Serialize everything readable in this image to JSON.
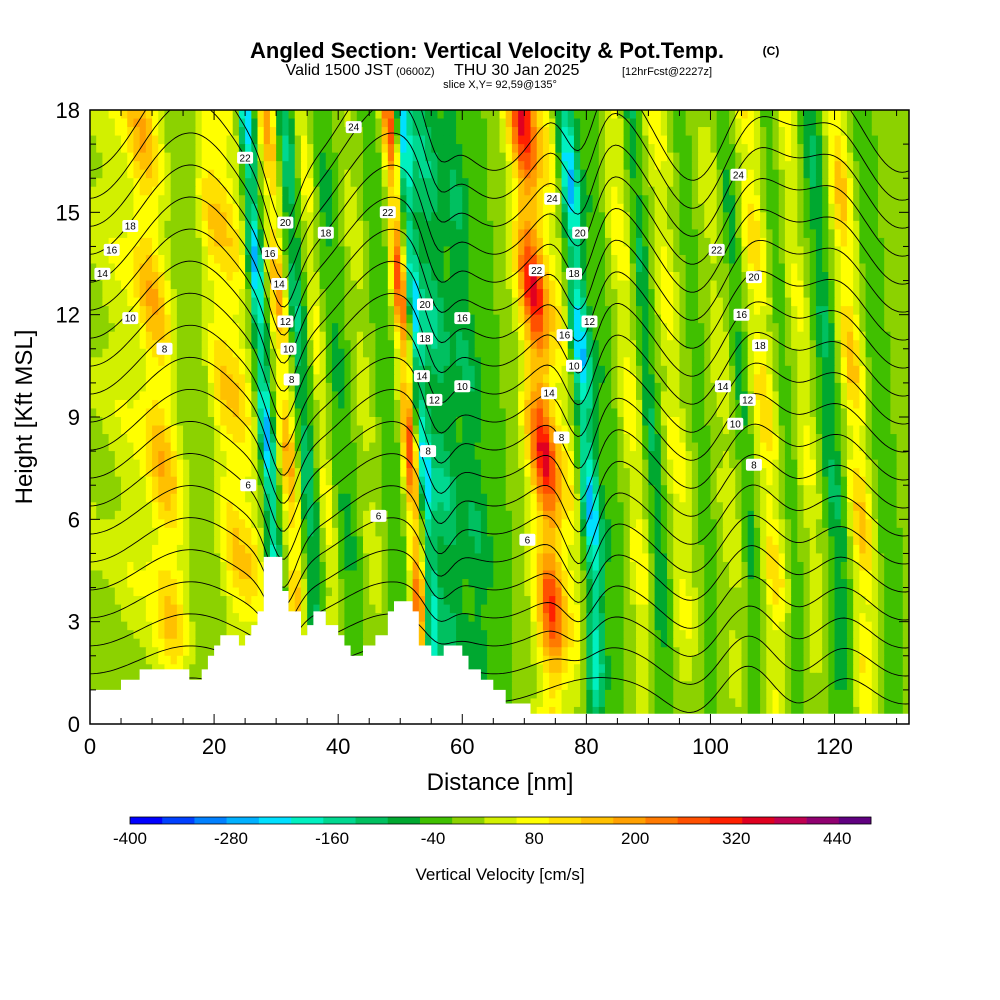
{
  "header": {
    "title": "Angled Section: Vertical Velocity & Pot.Temp.",
    "title_suffix": "(C)",
    "valid_prefix": "Valid 1500 JST",
    "valid_utc": "(0600Z)",
    "valid_date": "THU 30 Jan 2025",
    "forecast": "[12hrFcst@2227z]",
    "slice": "slice X,Y= 92,59@135°"
  },
  "chart_data": {
    "type": "heatmap",
    "xlabel": "Distance [nm]",
    "ylabel": "Height [Kft MSL]",
    "xlim": [
      0,
      132
    ],
    "ylim": [
      0,
      18
    ],
    "x_ticks": [
      0,
      20,
      40,
      60,
      80,
      100,
      120
    ],
    "y_ticks": [
      0,
      3,
      6,
      9,
      12,
      15,
      18
    ],
    "fill_variable": "Vertical Velocity [cm/s]",
    "contour_variable": "Potential temperature (C)",
    "colorbar": {
      "label": "Vertical Velocity [cm/s]",
      "levels": [
        -400,
        -360,
        -320,
        -280,
        -240,
        -200,
        -160,
        -120,
        -80,
        -40,
        0,
        40,
        80,
        120,
        160,
        200,
        240,
        280,
        320,
        360,
        400,
        440,
        480
      ],
      "tick_labels": [
        -400,
        -280,
        -160,
        -40,
        80,
        200,
        320,
        440
      ],
      "colors": [
        "#0000ff",
        "#0040ff",
        "#0080ff",
        "#00b0ff",
        "#00e0ff",
        "#00f0c0",
        "#00d890",
        "#00c060",
        "#00a830",
        "#40c000",
        "#8cd200",
        "#d2f000",
        "#ffff00",
        "#ffe000",
        "#ffc000",
        "#ffa000",
        "#ff7a00",
        "#ff5000",
        "#ff2000",
        "#e00020",
        "#c00050",
        "#900070",
        "#600080"
      ]
    },
    "velocity_bands": [
      {
        "x": 0,
        "w": 4,
        "v": 30
      },
      {
        "x": 7,
        "w": 3,
        "v": 60
      },
      {
        "x": 13,
        "w": 3,
        "v": 190
      },
      {
        "x": 19,
        "w": 3,
        "v": -20
      },
      {
        "x": 23,
        "w": 2,
        "v": 110
      },
      {
        "x": 26,
        "w": 2.5,
        "v": 130
      },
      {
        "x": 30,
        "w": 1.2,
        "v": -290
      },
      {
        "x": 33.5,
        "w": 1.5,
        "v": 230
      },
      {
        "x": 36,
        "w": 2,
        "v": -160
      },
      {
        "x": 39,
        "w": 1.5,
        "v": 120
      },
      {
        "x": 42,
        "w": 2.5,
        "v": -80
      },
      {
        "x": 46,
        "w": 2,
        "v": 60
      },
      {
        "x": 50,
        "w": 2.5,
        "v": -60
      },
      {
        "x": 53,
        "w": 1.3,
        "v": 330
      },
      {
        "x": 55,
        "w": 1.2,
        "v": -240
      },
      {
        "x": 58,
        "w": 2.5,
        "v": -150
      },
      {
        "x": 63,
        "w": 2.5,
        "v": -110
      },
      {
        "x": 68,
        "w": 2,
        "v": -20
      },
      {
        "x": 74.5,
        "w": 2.5,
        "v": 360
      },
      {
        "x": 78.5,
        "w": 1.5,
        "v": 80
      },
      {
        "x": 81.5,
        "w": 1.5,
        "v": -280
      },
      {
        "x": 85,
        "w": 2,
        "v": -60
      },
      {
        "x": 89,
        "w": 2,
        "v": 100
      },
      {
        "x": 92,
        "w": 1.5,
        "v": -120
      },
      {
        "x": 96,
        "w": 2,
        "v": 90
      },
      {
        "x": 100,
        "w": 2,
        "v": -40
      },
      {
        "x": 104,
        "w": 2,
        "v": 60
      },
      {
        "x": 107,
        "w": 1.5,
        "v": -90
      },
      {
        "x": 110.5,
        "w": 2,
        "v": 140
      },
      {
        "x": 114,
        "w": 1.5,
        "v": -60
      },
      {
        "x": 117,
        "w": 2,
        "v": 80
      },
      {
        "x": 121,
        "w": 2,
        "v": -120
      },
      {
        "x": 125,
        "w": 2,
        "v": 170
      },
      {
        "x": 129,
        "w": 2,
        "v": -60
      }
    ],
    "terrain": [
      [
        0,
        1.0
      ],
      [
        5,
        1.0
      ],
      [
        5,
        1.3
      ],
      [
        8,
        1.3
      ],
      [
        8,
        1.6
      ],
      [
        16,
        1.6
      ],
      [
        16,
        1.3
      ],
      [
        18,
        1.3
      ],
      [
        18,
        1.6
      ],
      [
        19,
        1.6
      ],
      [
        19,
        2.0
      ],
      [
        20,
        2.0
      ],
      [
        20,
        2.3
      ],
      [
        21,
        2.3
      ],
      [
        21,
        2.6
      ],
      [
        24,
        2.6
      ],
      [
        24,
        2.3
      ],
      [
        25,
        2.3
      ],
      [
        25,
        2.6
      ],
      [
        26,
        2.6
      ],
      [
        26,
        2.9
      ],
      [
        27,
        2.9
      ],
      [
        27,
        3.3
      ],
      [
        28,
        3.3
      ],
      [
        28,
        4.9
      ],
      [
        31,
        4.9
      ],
      [
        31,
        3.9
      ],
      [
        32,
        3.9
      ],
      [
        32,
        3.3
      ],
      [
        34,
        3.3
      ],
      [
        34,
        2.6
      ],
      [
        35,
        2.6
      ],
      [
        35,
        2.9
      ],
      [
        36,
        2.9
      ],
      [
        36,
        3.3
      ],
      [
        38,
        3.3
      ],
      [
        38,
        2.9
      ],
      [
        40,
        2.9
      ],
      [
        40,
        2.6
      ],
      [
        41,
        2.6
      ],
      [
        41,
        2.3
      ],
      [
        42,
        2.3
      ],
      [
        42,
        2.0
      ],
      [
        44,
        2.0
      ],
      [
        44,
        2.3
      ],
      [
        46,
        2.3
      ],
      [
        46,
        2.6
      ],
      [
        48,
        2.6
      ],
      [
        48,
        3.3
      ],
      [
        49,
        3.3
      ],
      [
        49,
        3.6
      ],
      [
        52,
        3.6
      ],
      [
        52,
        3.3
      ],
      [
        53,
        3.3
      ],
      [
        53,
        2.3
      ],
      [
        55,
        2.3
      ],
      [
        55,
        2.0
      ],
      [
        57,
        2.0
      ],
      [
        57,
        2.3
      ],
      [
        60,
        2.3
      ],
      [
        60,
        2.0
      ],
      [
        61,
        2.0
      ],
      [
        61,
        1.6
      ],
      [
        63,
        1.6
      ],
      [
        63,
        1.3
      ],
      [
        65,
        1.3
      ],
      [
        65,
        1.0
      ],
      [
        67,
        1.0
      ],
      [
        67,
        0.6
      ],
      [
        71,
        0.6
      ],
      [
        71,
        0.3
      ],
      [
        132,
        0.3
      ]
    ],
    "contour_labels": [
      {
        "x": 2,
        "y": 13.2,
        "t": "14"
      },
      {
        "x": 3.5,
        "y": 13.9,
        "t": "16"
      },
      {
        "x": 6.5,
        "y": 14.6,
        "t": "18"
      },
      {
        "x": 6.5,
        "y": 11.9,
        "t": "10"
      },
      {
        "x": 12,
        "y": 11.0,
        "t": "8"
      },
      {
        "x": 25,
        "y": 16.6,
        "t": "22"
      },
      {
        "x": 42.5,
        "y": 17.5,
        "t": "24"
      },
      {
        "x": 31.5,
        "y": 14.7,
        "t": "20"
      },
      {
        "x": 38,
        "y": 14.4,
        "t": "18"
      },
      {
        "x": 29,
        "y": 13.8,
        "t": "16"
      },
      {
        "x": 30.5,
        "y": 12.9,
        "t": "14"
      },
      {
        "x": 31.5,
        "y": 11.8,
        "t": "12"
      },
      {
        "x": 32,
        "y": 11.0,
        "t": "10"
      },
      {
        "x": 32.5,
        "y": 10.1,
        "t": "8"
      },
      {
        "x": 25.5,
        "y": 7.0,
        "t": "6"
      },
      {
        "x": 48,
        "y": 15.0,
        "t": "22"
      },
      {
        "x": 54,
        "y": 12.3,
        "t": "20"
      },
      {
        "x": 54,
        "y": 11.3,
        "t": "18"
      },
      {
        "x": 60,
        "y": 11.9,
        "t": "16"
      },
      {
        "x": 53.5,
        "y": 10.2,
        "t": "14"
      },
      {
        "x": 55.5,
        "y": 9.5,
        "t": "12"
      },
      {
        "x": 60,
        "y": 9.9,
        "t": "10"
      },
      {
        "x": 54.5,
        "y": 8.0,
        "t": "8"
      },
      {
        "x": 46.5,
        "y": 6.1,
        "t": "6"
      },
      {
        "x": 74.5,
        "y": 15.4,
        "t": "24"
      },
      {
        "x": 79,
        "y": 14.4,
        "t": "20"
      },
      {
        "x": 72,
        "y": 13.3,
        "t": "22"
      },
      {
        "x": 78,
        "y": 13.2,
        "t": "18"
      },
      {
        "x": 80.5,
        "y": 11.8,
        "t": "12"
      },
      {
        "x": 76.5,
        "y": 11.4,
        "t": "16"
      },
      {
        "x": 78,
        "y": 10.5,
        "t": "10"
      },
      {
        "x": 74,
        "y": 9.7,
        "t": "14"
      },
      {
        "x": 76,
        "y": 8.4,
        "t": "8"
      },
      {
        "x": 70.5,
        "y": 5.4,
        "t": "6"
      },
      {
        "x": 104.5,
        "y": 16.1,
        "t": "24"
      },
      {
        "x": 101,
        "y": 13.9,
        "t": "22"
      },
      {
        "x": 107,
        "y": 13.1,
        "t": "20"
      },
      {
        "x": 105,
        "y": 12.0,
        "t": "16"
      },
      {
        "x": 108,
        "y": 11.1,
        "t": "18"
      },
      {
        "x": 102,
        "y": 9.9,
        "t": "14"
      },
      {
        "x": 106,
        "y": 9.5,
        "t": "12"
      },
      {
        "x": 104,
        "y": 8.8,
        "t": "10"
      },
      {
        "x": 107,
        "y": 7.6,
        "t": "8"
      }
    ]
  }
}
